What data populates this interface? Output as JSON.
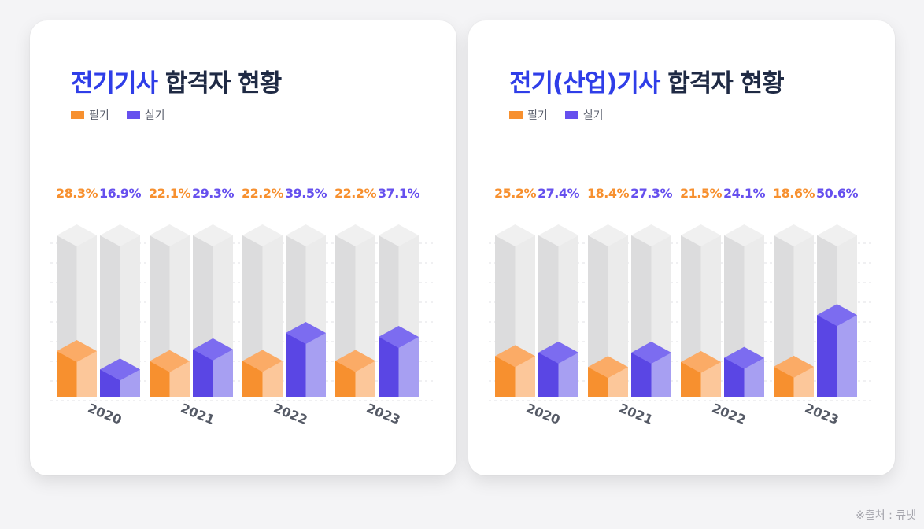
{
  "colors": {
    "written": "#f7902f",
    "practical": "#6650ee",
    "title_accent": "#2f3ee8",
    "title_dark": "#1f2a44"
  },
  "source": "※출처 : 큐넷",
  "panels": [
    {
      "title_accent": "전기기사",
      "title_rest": " 합격자 현황",
      "legend": [
        "필기",
        "실기"
      ]
    },
    {
      "title_accent": "전기(산업)기사",
      "title_rest": " 합격자 현황",
      "legend": [
        "필기",
        "실기"
      ]
    }
  ],
  "chart_data": [
    {
      "type": "bar",
      "title": "전기기사 합격자 현황",
      "categories": [
        "2020",
        "2021",
        "2022",
        "2023"
      ],
      "series": [
        {
          "name": "필기",
          "values": [
            28.3,
            22.1,
            22.2,
            22.2
          ],
          "labels": [
            "28.3%",
            "22.1%",
            "22.2%",
            "22.2%"
          ]
        },
        {
          "name": "실기",
          "values": [
            16.9,
            29.3,
            39.5,
            37.1
          ],
          "labels": [
            "16.9%",
            "29.3%",
            "39.5%",
            "37.1%"
          ]
        }
      ],
      "ylim": [
        0,
        100
      ],
      "grid": true,
      "legend": "top-left"
    },
    {
      "type": "bar",
      "title": "전기(산업)기사 합격자 현황",
      "categories": [
        "2020",
        "2021",
        "2022",
        "2023"
      ],
      "series": [
        {
          "name": "필기",
          "values": [
            25.2,
            18.4,
            21.5,
            18.6
          ],
          "labels": [
            "25.2%",
            "18.4%",
            "21.5%",
            "18.6%"
          ]
        },
        {
          "name": "실기",
          "values": [
            27.4,
            27.3,
            24.1,
            50.6
          ],
          "labels": [
            "27.4%",
            "27.3%",
            "24.1%",
            "50.6%"
          ]
        }
      ],
      "ylim": [
        0,
        100
      ],
      "grid": true,
      "legend": "top-left"
    }
  ]
}
